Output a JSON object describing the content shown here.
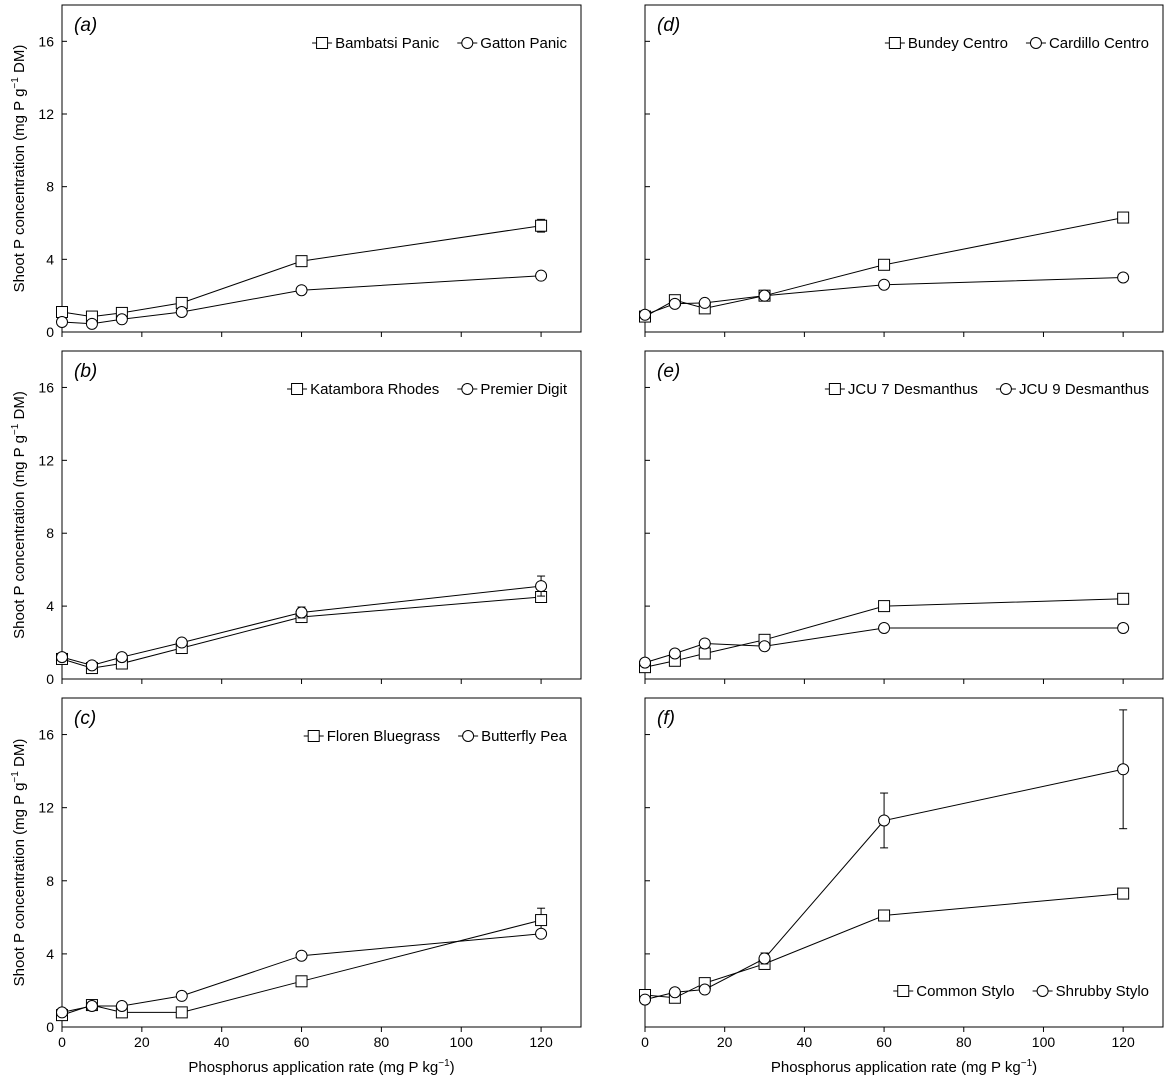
{
  "figure": {
    "ylabel_pre": "Shoot P concentration (mg P g",
    "ylabel_sup": "−1",
    "ylabel_post": " DM)",
    "xlabel_pre": "Phosphorus application rate (mg P kg",
    "xlabel_sup": "−1",
    "xlabel_post": ")"
  },
  "chart_data": [
    {
      "type": "line",
      "panel": "(a)",
      "xlim": [
        0,
        130
      ],
      "ylim": [
        0,
        18
      ],
      "xticks": [
        0,
        20,
        40,
        60,
        80,
        100,
        120
      ],
      "yticks": [
        0,
        4,
        8,
        12,
        16
      ],
      "show_xtick_labels": false,
      "show_ytick_labels": true,
      "show_ylabel": true,
      "show_xlabel": false,
      "legend_position": "top-right",
      "x": [
        0,
        7.5,
        15,
        30,
        60,
        120
      ],
      "series": [
        {
          "name": "Bambatsi Panic",
          "marker": "square",
          "values": [
            1.1,
            0.85,
            1.05,
            1.6,
            3.9,
            5.85
          ],
          "errors": [
            0,
            0,
            0,
            0,
            0,
            0.35
          ]
        },
        {
          "name": "Gatton Panic",
          "marker": "circle",
          "values": [
            0.55,
            0.45,
            0.7,
            1.1,
            2.3,
            3.1
          ],
          "errors": [
            0,
            0,
            0,
            0,
            0,
            0
          ]
        }
      ]
    },
    {
      "type": "line",
      "panel": "(d)",
      "xlim": [
        0,
        130
      ],
      "ylim": [
        0,
        18
      ],
      "xticks": [
        0,
        20,
        40,
        60,
        80,
        100,
        120
      ],
      "yticks": [
        0,
        4,
        8,
        12,
        16
      ],
      "show_xtick_labels": false,
      "show_ytick_labels": false,
      "show_ylabel": false,
      "show_xlabel": false,
      "legend_position": "top-right",
      "x": [
        0,
        7.5,
        15,
        30,
        60,
        120
      ],
      "series": [
        {
          "name": "Bundey Centro",
          "marker": "square",
          "values": [
            0.85,
            1.75,
            1.3,
            2.0,
            3.7,
            6.3
          ],
          "errors": [
            0,
            0,
            0,
            0,
            0,
            0
          ]
        },
        {
          "name": "Cardillo Centro",
          "marker": "circle",
          "values": [
            0.95,
            1.55,
            1.6,
            2.0,
            2.6,
            3.0
          ],
          "errors": [
            0,
            0,
            0,
            0,
            0,
            0
          ]
        }
      ]
    },
    {
      "type": "line",
      "panel": "(b)",
      "xlim": [
        0,
        130
      ],
      "ylim": [
        0,
        18
      ],
      "xticks": [
        0,
        20,
        40,
        60,
        80,
        100,
        120
      ],
      "yticks": [
        0,
        4,
        8,
        12,
        16
      ],
      "show_xtick_labels": false,
      "show_ytick_labels": true,
      "show_ylabel": true,
      "show_xlabel": false,
      "legend_position": "top-right",
      "x": [
        0,
        7.5,
        15,
        30,
        60,
        120
      ],
      "series": [
        {
          "name": "Katambora Rhodes",
          "marker": "square",
          "values": [
            1.1,
            0.6,
            0.85,
            1.7,
            3.4,
            4.5
          ],
          "errors": [
            0,
            0,
            0,
            0,
            0,
            0
          ]
        },
        {
          "name": "Premier Digit",
          "marker": "circle",
          "values": [
            1.2,
            0.75,
            1.2,
            2.0,
            3.65,
            5.1
          ],
          "errors": [
            0,
            0,
            0,
            0,
            0.3,
            0.55
          ]
        }
      ]
    },
    {
      "type": "line",
      "panel": "(e)",
      "xlim": [
        0,
        130
      ],
      "ylim": [
        0,
        18
      ],
      "xticks": [
        0,
        20,
        40,
        60,
        80,
        100,
        120
      ],
      "yticks": [
        0,
        4,
        8,
        12,
        16
      ],
      "show_xtick_labels": false,
      "show_ytick_labels": false,
      "show_ylabel": false,
      "show_xlabel": false,
      "legend_position": "top-right",
      "x": [
        0,
        7.5,
        15,
        30,
        60,
        120
      ],
      "series": [
        {
          "name": "JCU 7 Desmanthus",
          "marker": "square",
          "values": [
            0.65,
            1.0,
            1.4,
            2.15,
            4.0,
            4.4
          ],
          "errors": [
            0,
            0,
            0,
            0,
            0,
            0
          ]
        },
        {
          "name": "JCU 9 Desmanthus",
          "marker": "circle",
          "values": [
            0.9,
            1.4,
            1.95,
            1.8,
            2.8,
            2.8
          ],
          "errors": [
            0,
            0,
            0,
            0,
            0,
            0
          ]
        }
      ]
    },
    {
      "type": "line",
      "panel": "(c)",
      "xlim": [
        0,
        130
      ],
      "ylim": [
        0,
        18
      ],
      "xticks": [
        0,
        20,
        40,
        60,
        80,
        100,
        120
      ],
      "yticks": [
        0,
        4,
        8,
        12,
        16
      ],
      "show_xtick_labels": true,
      "show_ytick_labels": true,
      "show_ylabel": true,
      "show_xlabel": true,
      "legend_position": "top-right",
      "x": [
        0,
        7.5,
        15,
        30,
        60,
        120
      ],
      "series": [
        {
          "name": "Floren Bluegrass",
          "marker": "square",
          "values": [
            0.65,
            1.2,
            0.8,
            0.8,
            2.5,
            5.85
          ],
          "errors": [
            0,
            0,
            0,
            0,
            0,
            0.65
          ]
        },
        {
          "name": "Butterfly Pea",
          "marker": "circle",
          "values": [
            0.8,
            1.15,
            1.15,
            1.7,
            3.9,
            5.1
          ],
          "errors": [
            0,
            0,
            0,
            0,
            0,
            0
          ]
        }
      ]
    },
    {
      "type": "line",
      "panel": "(f)",
      "xlim": [
        0,
        130
      ],
      "ylim": [
        0,
        18
      ],
      "xticks": [
        0,
        20,
        40,
        60,
        80,
        100,
        120
      ],
      "yticks": [
        0,
        4,
        8,
        12,
        16
      ],
      "show_xtick_labels": true,
      "show_ytick_labels": false,
      "show_ylabel": false,
      "show_xlabel": true,
      "legend_position": "bottom-right",
      "x": [
        0,
        7.5,
        15,
        30,
        60,
        120
      ],
      "series": [
        {
          "name": "Common Stylo",
          "marker": "square",
          "values": [
            1.75,
            1.6,
            2.4,
            3.45,
            6.1,
            7.3
          ],
          "errors": [
            0,
            0,
            0,
            0,
            0.2,
            0
          ]
        },
        {
          "name": "Shrubby Stylo",
          "marker": "circle",
          "values": [
            1.5,
            1.9,
            2.05,
            3.75,
            11.3,
            14.1
          ],
          "errors": [
            0,
            0,
            0,
            0.3,
            1.5,
            3.25
          ]
        }
      ]
    }
  ]
}
